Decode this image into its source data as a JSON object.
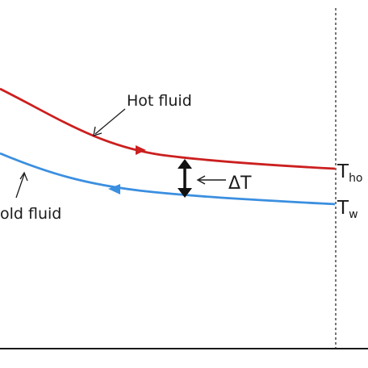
{
  "labels": {
    "hot_fluid": "Hot fluid",
    "cold_fluid": "old fluid",
    "delta_t": "ΔT",
    "t_main_hot": "T",
    "t_sub_hot": "ho",
    "t_main_cold": "T",
    "t_sub_cold": "w"
  },
  "colors": {
    "hot_stream": "#cc1f1f",
    "cold_stream": "#3b8fe0",
    "axis": "#1a1a1a",
    "text": "#1a1a1a"
  },
  "icons": {
    "hot_flow_direction": "arrowhead-right-icon",
    "cold_flow_direction": "arrowhead-left-icon",
    "delta_t_indicator": "double-arrow-vertical-icon"
  }
}
